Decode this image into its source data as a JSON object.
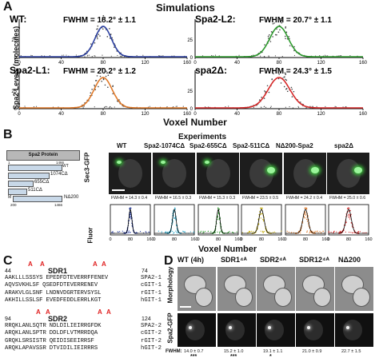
{
  "panelA": {
    "letter": "A",
    "title": "Simulations",
    "ylabel": "Spa2 Levels (molecules)",
    "xlabel": "Voxel Number",
    "plots": [
      {
        "label": "WT:",
        "fwhm": "FWHM = 18.2° ± 1.1",
        "color": "#2b3fa0"
      },
      {
        "label": "Spa2-L2:",
        "fwhm": "FWHM = 20.7° ± 1.1",
        "color": "#2e9b2e"
      },
      {
        "label": "Spa2-L1:",
        "fwhm": "FWHM = 20.2° ± 1.2",
        "color": "#e07a2a"
      },
      {
        "label": "spa2Δ:",
        "fwhm": "FWHM = 24.3° ± 1.5",
        "color": "#d62a2a"
      }
    ],
    "xticks": [
      "0",
      "40",
      "80",
      "120",
      "160"
    ],
    "yticks": [
      "0",
      "25"
    ]
  },
  "panelB": {
    "letter": "B",
    "title": "Experiments",
    "protein_title": "Spa2 Protein",
    "constructs": [
      {
        "label": "WT",
        "start_label": "1",
        "end_label": "1466"
      },
      {
        "label": "1074CΔ"
      },
      {
        "label": "655CΔ"
      },
      {
        "label": "511CΔ"
      },
      {
        "label": "NΔ200",
        "start_label": "200",
        "end_label": "1466",
        "m_label": "M"
      }
    ],
    "columns": [
      "WT",
      "Spa2-1074CΔ",
      "Spa2-655CΔ",
      "Spa2-511CΔ",
      "NΔ200-Spa2",
      "spa2Δ"
    ],
    "row_label": "Sec3-GFP",
    "fwhm": [
      "FWHM = 14.3 ± 0.4",
      "FWHM = 16.5 ± 0.3",
      "FWHM = 15.3 ± 0.3",
      "FWHM = 23.5 ± 0.5",
      "FWHM = 24.2 ± 0.4",
      "FWHM = 25.0 ± 0.6"
    ],
    "stars": [
      "",
      "",
      "",
      "***",
      "***",
      "***"
    ],
    "colors": [
      "#2b3fa0",
      "#2aa7c9",
      "#2e9b2e",
      "#c9b21a",
      "#e07a2a",
      "#d62a2a"
    ],
    "ylabel": "Fluor",
    "xticks": [
      "0",
      "80",
      "160"
    ],
    "xlabel": "Voxel Number"
  },
  "panelC": {
    "letter": "C",
    "sdr1": {
      "title": "SDR1",
      "start": "44",
      "end": "74",
      "marks": [
        "A",
        "A",
        "A",
        "A"
      ],
      "rows": [
        [
          "AAKLLLSSSYS",
          "EPEDFDTEVERRFFENEV",
          "SPA2-1"
        ],
        [
          "AQVSVKHLSF",
          "QSEDFDTEVERRENEV",
          "cGIT-1"
        ],
        [
          "ARAKVLGLSNF",
          "LNDNVDGRTERVSYSL",
          "rGIT-1"
        ],
        [
          "AKHILLSSLSF",
          "EVEDFEDDLERRLKGT",
          "hGIT-1"
        ]
      ]
    },
    "sdr2": {
      "title": "SDR2",
      "start": "94",
      "end": "124",
      "marks": [
        "A",
        "A",
        "A",
        "A"
      ],
      "rows": [
        [
          "RRQKLANLSQTR",
          "NDLDILIEIRRGFDK",
          "SPA2-2"
        ],
        [
          "ARQKLANLSPTR",
          "DDLDFLVTMRRDQA",
          "cGIT-2"
        ],
        [
          "GRQKLSRSISTR",
          "QEIDISEEIRRSF",
          "rGIT-2"
        ],
        [
          "ARQKLAPAVSSR",
          "DTVIDILIEIRRRS",
          "hGIT-2"
        ]
      ]
    }
  },
  "panelD": {
    "letter": "D",
    "columns": [
      "WT (4h)",
      "SDR1⁴ᴬ",
      "SDR2⁴ᴬ",
      "SDR12⁴ᴬ",
      "NΔ200"
    ],
    "row1": "Morphology",
    "row2": "Spa2-GFP",
    "fwhm_label": "FWHM:",
    "fwhm": [
      "14.0 ± 0.7",
      "15.2 ± 1.0",
      "19.1 ± 1.1",
      "21.0 ± 0.9",
      "22.7 ± 1.5"
    ],
    "stars": [
      "***",
      "***",
      "*",
      "",
      ""
    ]
  },
  "chart_data": [
    {
      "type": "line",
      "title": "Simulations",
      "xlabel": "Voxel Number",
      "ylabel": "Spa2 Levels (molecules)",
      "xlim": [
        0,
        160
      ],
      "series": [
        {
          "name": "WT",
          "peak_x": 80,
          "fwhm": 18.2
        },
        {
          "name": "Spa2-L2",
          "peak_x": 80,
          "fwhm": 20.7
        },
        {
          "name": "Spa2-L1",
          "peak_x": 80,
          "fwhm": 20.2
        },
        {
          "name": "spa2Δ",
          "peak_x": 80,
          "fwhm": 24.3
        }
      ]
    },
    {
      "type": "line",
      "title": "Experiments",
      "xlabel": "Voxel Number",
      "ylabel": "Fluor",
      "xlim": [
        0,
        160
      ],
      "series": [
        {
          "name": "WT",
          "fwhm": 14.3
        },
        {
          "name": "Spa2-1074CΔ",
          "fwhm": 16.5
        },
        {
          "name": "Spa2-655CΔ",
          "fwhm": 15.3
        },
        {
          "name": "Spa2-511CΔ",
          "fwhm": 23.5
        },
        {
          "name": "NΔ200-Spa2",
          "fwhm": 24.2
        },
        {
          "name": "spa2Δ",
          "fwhm": 25.0
        }
      ]
    }
  ]
}
